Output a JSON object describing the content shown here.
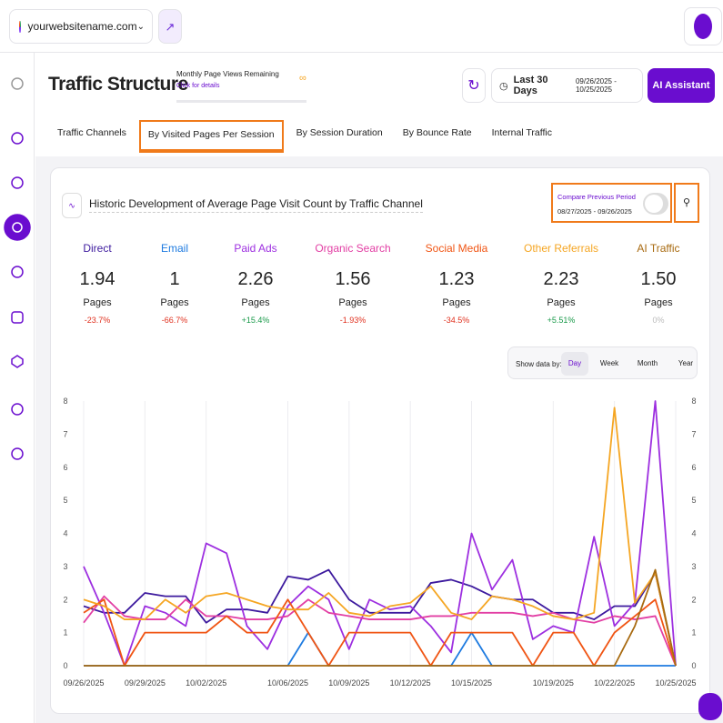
{
  "topbar": {
    "site": "yourwebsitename.com"
  },
  "header": {
    "title": "Traffic Structure",
    "quota_label": "Monthly Page Views Remaining",
    "quota_link": "Click for details",
    "quota_value": "∞",
    "date_range_label": "Last 30 Days",
    "date_range": "09/26/2025 - 10/25/2025",
    "assistant": "AI Assistant"
  },
  "tabs": [
    "Traffic Channels",
    "By Visited Pages Per Session",
    "By Session Duration",
    "By Bounce Rate",
    "Internal Traffic"
  ],
  "active_tab": 1,
  "card": {
    "title": "Historic Development of Average Page Visit Count by Traffic Channel",
    "compare_label": "Compare Previous Period",
    "compare_range": "08/27/2025 - 09/26/2025"
  },
  "kpis": [
    {
      "name": "Direct",
      "value": "1.94",
      "unit": "Pages",
      "change": "-23.7%",
      "color": "#3d1a9e"
    },
    {
      "name": "Email",
      "value": "1",
      "unit": "Pages",
      "change": "-66.7%",
      "color": "#1e7be0"
    },
    {
      "name": "Paid Ads",
      "value": "2.26",
      "unit": "Pages",
      "change": "+15.4%",
      "color": "#9d2fe0"
    },
    {
      "name": "Organic Search",
      "value": "1.56",
      "unit": "Pages",
      "change": "-1.93%",
      "color": "#e23fa4"
    },
    {
      "name": "Social Media",
      "value": "1.23",
      "unit": "Pages",
      "change": "-34.5%",
      "color": "#f05514"
    },
    {
      "name": "Other Referrals",
      "value": "2.23",
      "unit": "Pages",
      "change": "+5.51%",
      "color": "#f5a623"
    },
    {
      "name": "AI Traffic",
      "value": "1.50",
      "unit": "Pages",
      "change": "0%",
      "color": "#a86a10"
    }
  ],
  "show_by": {
    "label": "Show data by:",
    "options": [
      "Day",
      "Week",
      "Month",
      "Year"
    ],
    "active": 0
  },
  "chart_data": {
    "type": "line",
    "grid": "x",
    "x": [
      "09/26/2025",
      null,
      null,
      "09/29/2025",
      null,
      null,
      "10/02/2025",
      null,
      null,
      null,
      "10/06/2025",
      null,
      null,
      "10/09/2025",
      null,
      null,
      "10/12/2025",
      null,
      null,
      "10/15/2025",
      null,
      null,
      null,
      "10/19/2025",
      null,
      null,
      "10/22/2025",
      null,
      null,
      "10/25/2025"
    ],
    "ylim": [
      0,
      8
    ],
    "yticks": [
      0,
      1,
      2,
      3,
      4,
      5,
      6,
      7,
      8
    ],
    "series": [
      {
        "name": "Direct",
        "color": "#3d1a9e",
        "values": [
          1.8,
          1.6,
          1.6,
          2.2,
          2.1,
          2.1,
          1.3,
          1.7,
          1.7,
          1.6,
          2.7,
          2.6,
          2.9,
          2.0,
          1.6,
          1.6,
          1.6,
          2.5,
          2.6,
          2.4,
          2.1,
          2.0,
          2.0,
          1.6,
          1.6,
          1.4,
          1.8,
          1.8,
          2.8,
          0
        ]
      },
      {
        "name": "Email",
        "color": "#1e7be0",
        "values": [
          0,
          0,
          0,
          0,
          0,
          0,
          0,
          0,
          0,
          0,
          0,
          1,
          0,
          0,
          0,
          0,
          0,
          0,
          0,
          1,
          0,
          0,
          0,
          0,
          0,
          0,
          0,
          0,
          0,
          0
        ]
      },
      {
        "name": "Paid Ads",
        "color": "#9d2fe0",
        "values": [
          3.0,
          1.6,
          0,
          1.8,
          1.6,
          1.2,
          3.7,
          3.4,
          1.2,
          0.5,
          1.8,
          2.4,
          2.0,
          0.5,
          2.0,
          1.7,
          1.8,
          1.2,
          0.4,
          4.0,
          2.3,
          3.2,
          0.8,
          1.2,
          1.0,
          3.9,
          1.2,
          1.9,
          8.0,
          0
        ]
      },
      {
        "name": "Organic Search",
        "color": "#e23fa4",
        "values": [
          1.3,
          2.1,
          1.5,
          1.4,
          1.4,
          2.0,
          1.5,
          1.5,
          1.4,
          1.4,
          1.5,
          2.0,
          1.6,
          1.5,
          1.4,
          1.4,
          1.4,
          1.5,
          1.5,
          1.6,
          1.6,
          1.6,
          1.5,
          1.6,
          1.4,
          1.3,
          1.5,
          1.4,
          1.5,
          0
        ]
      },
      {
        "name": "Social Media",
        "color": "#f05514",
        "values": [
          1.6,
          2.0,
          0,
          1.0,
          1.0,
          1.0,
          1.0,
          1.5,
          1.0,
          1.0,
          2.0,
          1.0,
          0,
          1.0,
          1.0,
          1.0,
          1.0,
          0,
          1.0,
          1.0,
          1.0,
          1.0,
          0,
          1.0,
          1.0,
          0,
          1.0,
          1.5,
          2.0,
          0
        ]
      },
      {
        "name": "Other Referrals",
        "color": "#f5a623",
        "values": [
          2.0,
          1.8,
          1.4,
          1.4,
          2.0,
          1.6,
          2.1,
          2.2,
          2.0,
          1.8,
          1.7,
          1.7,
          2.2,
          1.6,
          1.5,
          1.8,
          1.9,
          2.4,
          1.6,
          1.4,
          2.1,
          2.0,
          1.8,
          1.5,
          1.4,
          1.6,
          7.8,
          1.9,
          2.8,
          0
        ]
      },
      {
        "name": "AI Traffic",
        "color": "#a86a10",
        "values": [
          0,
          0,
          0,
          0,
          0,
          0,
          0,
          0,
          0,
          0,
          0,
          0,
          0,
          0,
          0,
          0,
          0,
          0,
          0,
          0,
          0,
          0,
          0,
          0,
          0,
          0,
          0,
          1.2,
          2.9,
          0
        ]
      }
    ]
  }
}
